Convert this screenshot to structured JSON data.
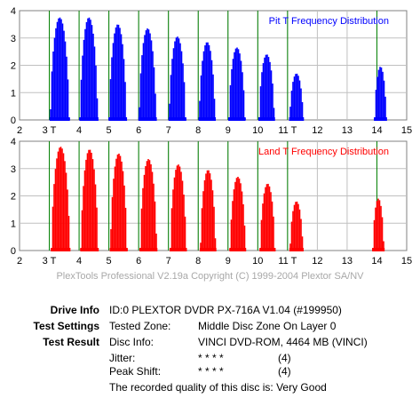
{
  "chart_data": [
    {
      "type": "bar",
      "title": "Pit T Frequency Distribution",
      "xlim": [
        2,
        15
      ],
      "ylim": [
        0,
        4
      ],
      "x_ticks": [
        2,
        3,
        4,
        5,
        6,
        7,
        8,
        9,
        10,
        11,
        12,
        13,
        14,
        15
      ],
      "x_tick_labels": [
        "2",
        "3 T",
        "4",
        "5",
        "6",
        "7",
        "8",
        "9",
        "10",
        "11 T",
        "12",
        "13",
        "14",
        "15"
      ],
      "y_ticks": [
        0,
        1,
        2,
        3,
        4
      ],
      "grid": true,
      "color": "#0000ff",
      "peaks": [
        {
          "label": "3T",
          "center": 3.35,
          "width": 0.62,
          "peak": 3.75
        },
        {
          "label": "4T",
          "center": 4.33,
          "width": 0.58,
          "peak": 3.75
        },
        {
          "label": "5T",
          "center": 5.3,
          "width": 0.56,
          "peak": 3.5
        },
        {
          "label": "6T",
          "center": 6.3,
          "width": 0.56,
          "peak": 3.35
        },
        {
          "label": "7T",
          "center": 7.3,
          "width": 0.54,
          "peak": 3.05
        },
        {
          "label": "8T",
          "center": 8.3,
          "width": 0.52,
          "peak": 2.85
        },
        {
          "label": "9T",
          "center": 9.3,
          "width": 0.52,
          "peak": 2.65
        },
        {
          "label": "10T",
          "center": 10.3,
          "width": 0.5,
          "peak": 2.4
        },
        {
          "label": "11T",
          "center": 11.3,
          "width": 0.44,
          "peak": 1.7
        },
        {
          "label": "14T",
          "center": 14.12,
          "width": 0.38,
          "peak": 1.95
        }
      ]
    },
    {
      "type": "bar",
      "title": "Land T Frequency Distribution",
      "xlim": [
        2,
        15
      ],
      "ylim": [
        0,
        4
      ],
      "x_ticks": [
        2,
        3,
        4,
        5,
        6,
        7,
        8,
        9,
        10,
        11,
        12,
        13,
        14,
        15
      ],
      "x_tick_labels": [
        "2",
        "3 T",
        "4",
        "5",
        "6",
        "7",
        "8",
        "9",
        "10",
        "11 T",
        "12",
        "13",
        "14",
        "15"
      ],
      "y_ticks": [
        0,
        1,
        2,
        3,
        4
      ],
      "grid": true,
      "color": "#ff0000",
      "peaks": [
        {
          "label": "3T",
          "center": 3.38,
          "width": 0.6,
          "peak": 3.8
        },
        {
          "label": "4T",
          "center": 4.35,
          "width": 0.56,
          "peak": 3.7
        },
        {
          "label": "5T",
          "center": 5.33,
          "width": 0.54,
          "peak": 3.55
        },
        {
          "label": "6T",
          "center": 6.33,
          "width": 0.54,
          "peak": 3.35
        },
        {
          "label": "7T",
          "center": 7.33,
          "width": 0.52,
          "peak": 3.15
        },
        {
          "label": "8T",
          "center": 8.33,
          "width": 0.5,
          "peak": 2.95
        },
        {
          "label": "9T",
          "center": 9.33,
          "width": 0.5,
          "peak": 2.7
        },
        {
          "label": "10T",
          "center": 10.33,
          "width": 0.48,
          "peak": 2.45
        },
        {
          "label": "11T",
          "center": 11.3,
          "width": 0.42,
          "peak": 1.8
        },
        {
          "label": "14T",
          "center": 14.05,
          "width": 0.36,
          "peak": 1.9
        }
      ]
    }
  ],
  "reference_lines": [
    3,
    4,
    5,
    6,
    7,
    8,
    9,
    10,
    11,
    14
  ],
  "reference_color": "#008000",
  "copyright": "PlexTools Professional V2.19a Copyright (C) 1999-2004 Plextor SA/NV",
  "info": {
    "drive_label": "Drive Info",
    "drive_value": "ID:0 PLEXTOR DVDR PX-716A V1.04 (#199950)",
    "settings_label": "Test Settings",
    "settings_key": "Tested Zone:",
    "settings_value": "Middle Disc Zone On Layer 0",
    "result_label": "Test Result",
    "disc_key": "Disc Info:",
    "disc_value": "VINCI DVD-ROM, 4464 MB (VINCI)",
    "jitter_key": "Jitter:",
    "jitter_stars": "* * * *",
    "jitter_score": "(4)",
    "peak_key": "Peak Shift:",
    "peak_stars": "* * * *",
    "peak_score": "(4)",
    "quality": "The recorded quality of this disc is: Very Good"
  }
}
